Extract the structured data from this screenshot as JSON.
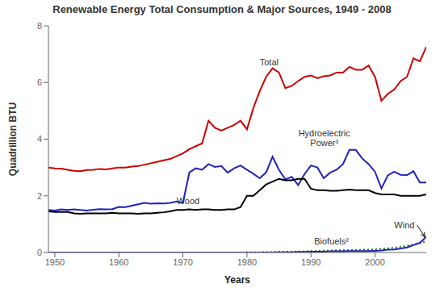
{
  "chart_data": {
    "type": "line",
    "title": "Renewable Energy Total Consumption & Major Sources, 1949 - 2008",
    "x_label": "Years",
    "y_label": "Quadrillion BTU",
    "xlim": [
      1949,
      2008
    ],
    "ylim": [
      0,
      8
    ],
    "yticks": [
      0,
      2,
      4,
      6,
      8
    ],
    "xticks": [
      1950,
      1960,
      1970,
      1980,
      1990,
      2000
    ],
    "grid": false,
    "x": [
      1949,
      1950,
      1951,
      1952,
      1953,
      1954,
      1955,
      1956,
      1957,
      1958,
      1959,
      1960,
      1961,
      1962,
      1963,
      1964,
      1965,
      1966,
      1967,
      1968,
      1969,
      1970,
      1971,
      1972,
      1973,
      1974,
      1975,
      1976,
      1977,
      1978,
      1979,
      1980,
      1981,
      1982,
      1983,
      1984,
      1985,
      1986,
      1987,
      1988,
      1989,
      1990,
      1991,
      1992,
      1993,
      1994,
      1995,
      1996,
      1997,
      1998,
      1999,
      2000,
      2001,
      2002,
      2003,
      2004,
      2005,
      2006,
      2007,
      2008
    ],
    "series": [
      {
        "name": "Total",
        "color": "#cc0000",
        "line_style": "solid",
        "label_x": 1982,
        "label_y": 6.6,
        "values": [
          3.0,
          2.97,
          2.96,
          2.92,
          2.88,
          2.87,
          2.91,
          2.92,
          2.95,
          2.93,
          2.97,
          3.0,
          3.0,
          3.03,
          3.05,
          3.1,
          3.15,
          3.2,
          3.25,
          3.3,
          3.4,
          3.5,
          3.65,
          3.75,
          3.85,
          4.65,
          4.4,
          4.3,
          4.4,
          4.5,
          4.65,
          4.35,
          5.1,
          5.7,
          6.2,
          6.5,
          6.35,
          5.8,
          5.88,
          6.05,
          6.2,
          6.25,
          6.15,
          6.22,
          6.25,
          6.35,
          6.35,
          6.55,
          6.45,
          6.45,
          6.6,
          6.2,
          5.35,
          5.6,
          5.75,
          6.05,
          6.2,
          6.85,
          6.75,
          7.25
        ]
      },
      {
        "name": "Hydroelectric\nPower³",
        "color": "#2222bb",
        "line_style": "solid",
        "label_x": 1987,
        "label_y": 3.75,
        "values": [
          1.5,
          1.48,
          1.52,
          1.5,
          1.52,
          1.5,
          1.48,
          1.51,
          1.53,
          1.52,
          1.53,
          1.61,
          1.6,
          1.65,
          1.7,
          1.75,
          1.72,
          1.74,
          1.73,
          1.75,
          1.8,
          1.75,
          2.82,
          2.97,
          2.92,
          3.12,
          3.02,
          3.05,
          2.82,
          2.97,
          3.07,
          2.92,
          2.78,
          2.62,
          2.83,
          3.38,
          2.92,
          2.58,
          2.67,
          2.38,
          2.77,
          3.07,
          3.0,
          2.62,
          2.82,
          2.92,
          3.12,
          3.62,
          3.62,
          3.32,
          3.12,
          2.85,
          2.26,
          2.72,
          2.85,
          2.74,
          2.73,
          2.87,
          2.47,
          2.47
        ]
      },
      {
        "name": "Wood",
        "color": "#000000",
        "line_style": "solid",
        "label_x": 1969,
        "label_y": 1.72,
        "values": [
          1.45,
          1.43,
          1.43,
          1.43,
          1.38,
          1.37,
          1.38,
          1.38,
          1.38,
          1.38,
          1.4,
          1.38,
          1.38,
          1.38,
          1.37,
          1.38,
          1.38,
          1.4,
          1.42,
          1.45,
          1.5,
          1.5,
          1.52,
          1.5,
          1.52,
          1.52,
          1.5,
          1.5,
          1.52,
          1.52,
          1.6,
          2.0,
          2.0,
          2.2,
          2.4,
          2.5,
          2.6,
          2.55,
          2.55,
          2.6,
          2.6,
          2.25,
          2.2,
          2.2,
          2.18,
          2.18,
          2.2,
          2.22,
          2.2,
          2.2,
          2.2,
          2.1,
          2.05,
          2.05,
          2.05,
          2.0,
          2.0,
          2.0,
          2.0,
          2.05
        ]
      },
      {
        "name": "Biofuels²",
        "color": "#007700",
        "line_style": "dotted",
        "label_x": 1990.5,
        "label_y": 0.28,
        "values": [
          0.0,
          0.0,
          0.0,
          0.0,
          0.0,
          0.0,
          0.0,
          0.0,
          0.0,
          0.0,
          0.0,
          0.0,
          0.0,
          0.0,
          0.0,
          0.0,
          0.0,
          0.0,
          0.0,
          0.0,
          0.0,
          0.0,
          0.0,
          0.0,
          0.0,
          0.0,
          0.0,
          0.0,
          0.0,
          0.0,
          0.0,
          0.01,
          0.01,
          0.01,
          0.02,
          0.02,
          0.03,
          0.03,
          0.03,
          0.04,
          0.04,
          0.05,
          0.06,
          0.07,
          0.07,
          0.08,
          0.08,
          0.09,
          0.09,
          0.1,
          0.1,
          0.11,
          0.13,
          0.15,
          0.17,
          0.2,
          0.24,
          0.28,
          0.33,
          0.4
        ]
      },
      {
        "name": "Wind",
        "color": "#2222bb",
        "line_style": "solid",
        "label_x": 2003.0,
        "label_y": 0.85,
        "arrow_x": 2007.8,
        "arrow_y": 0.55,
        "values": [
          0.0,
          0.0,
          0.0,
          0.0,
          0.0,
          0.0,
          0.0,
          0.0,
          0.0,
          0.0,
          0.0,
          0.0,
          0.0,
          0.0,
          0.0,
          0.0,
          0.0,
          0.0,
          0.0,
          0.0,
          0.0,
          0.0,
          0.0,
          0.0,
          0.0,
          0.0,
          0.0,
          0.0,
          0.0,
          0.0,
          0.0,
          0.0,
          0.0,
          0.0,
          0.0,
          0.0,
          0.01,
          0.01,
          0.01,
          0.02,
          0.02,
          0.03,
          0.03,
          0.03,
          0.04,
          0.04,
          0.04,
          0.05,
          0.05,
          0.05,
          0.05,
          0.06,
          0.07,
          0.1,
          0.11,
          0.14,
          0.18,
          0.26,
          0.34,
          0.55
        ]
      }
    ]
  }
}
